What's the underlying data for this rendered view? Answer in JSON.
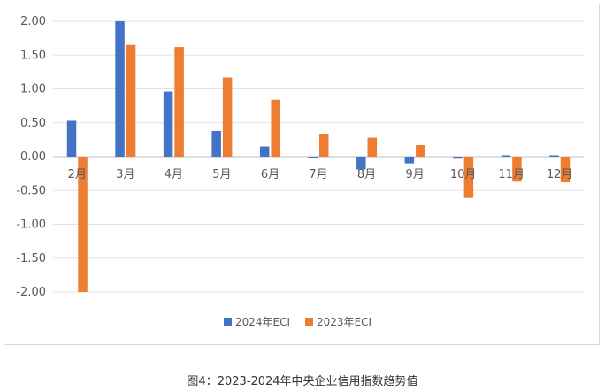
{
  "caption": "图4：2023-2024年中央企业信用指数趋势值",
  "chart_data": {
    "type": "bar",
    "categories": [
      "2月",
      "3月",
      "4月",
      "5月",
      "6月",
      "7月",
      "8月",
      "9月",
      "10月",
      "11月",
      "12月"
    ],
    "series": [
      {
        "name": "2024年ECI",
        "color": "#4472c4",
        "values": [
          0.53,
          2.0,
          0.96,
          0.38,
          0.15,
          -0.02,
          -0.19,
          -0.1,
          -0.03,
          0.02,
          0.02
        ]
      },
      {
        "name": "2023年ECI",
        "color": "#ed7d31",
        "values": [
          -2.0,
          1.65,
          1.62,
          1.17,
          0.84,
          0.34,
          0.28,
          0.17,
          -0.61,
          -0.37,
          -0.38
        ]
      }
    ],
    "yticks": [
      "2.00",
      "1.50",
      "1.00",
      "0.50",
      "0.00",
      "-0.50",
      "-1.00",
      "-1.50",
      "-2.00"
    ],
    "ylim": [
      -2.0,
      2.0
    ],
    "grid": true,
    "legend": "bottom-center"
  }
}
